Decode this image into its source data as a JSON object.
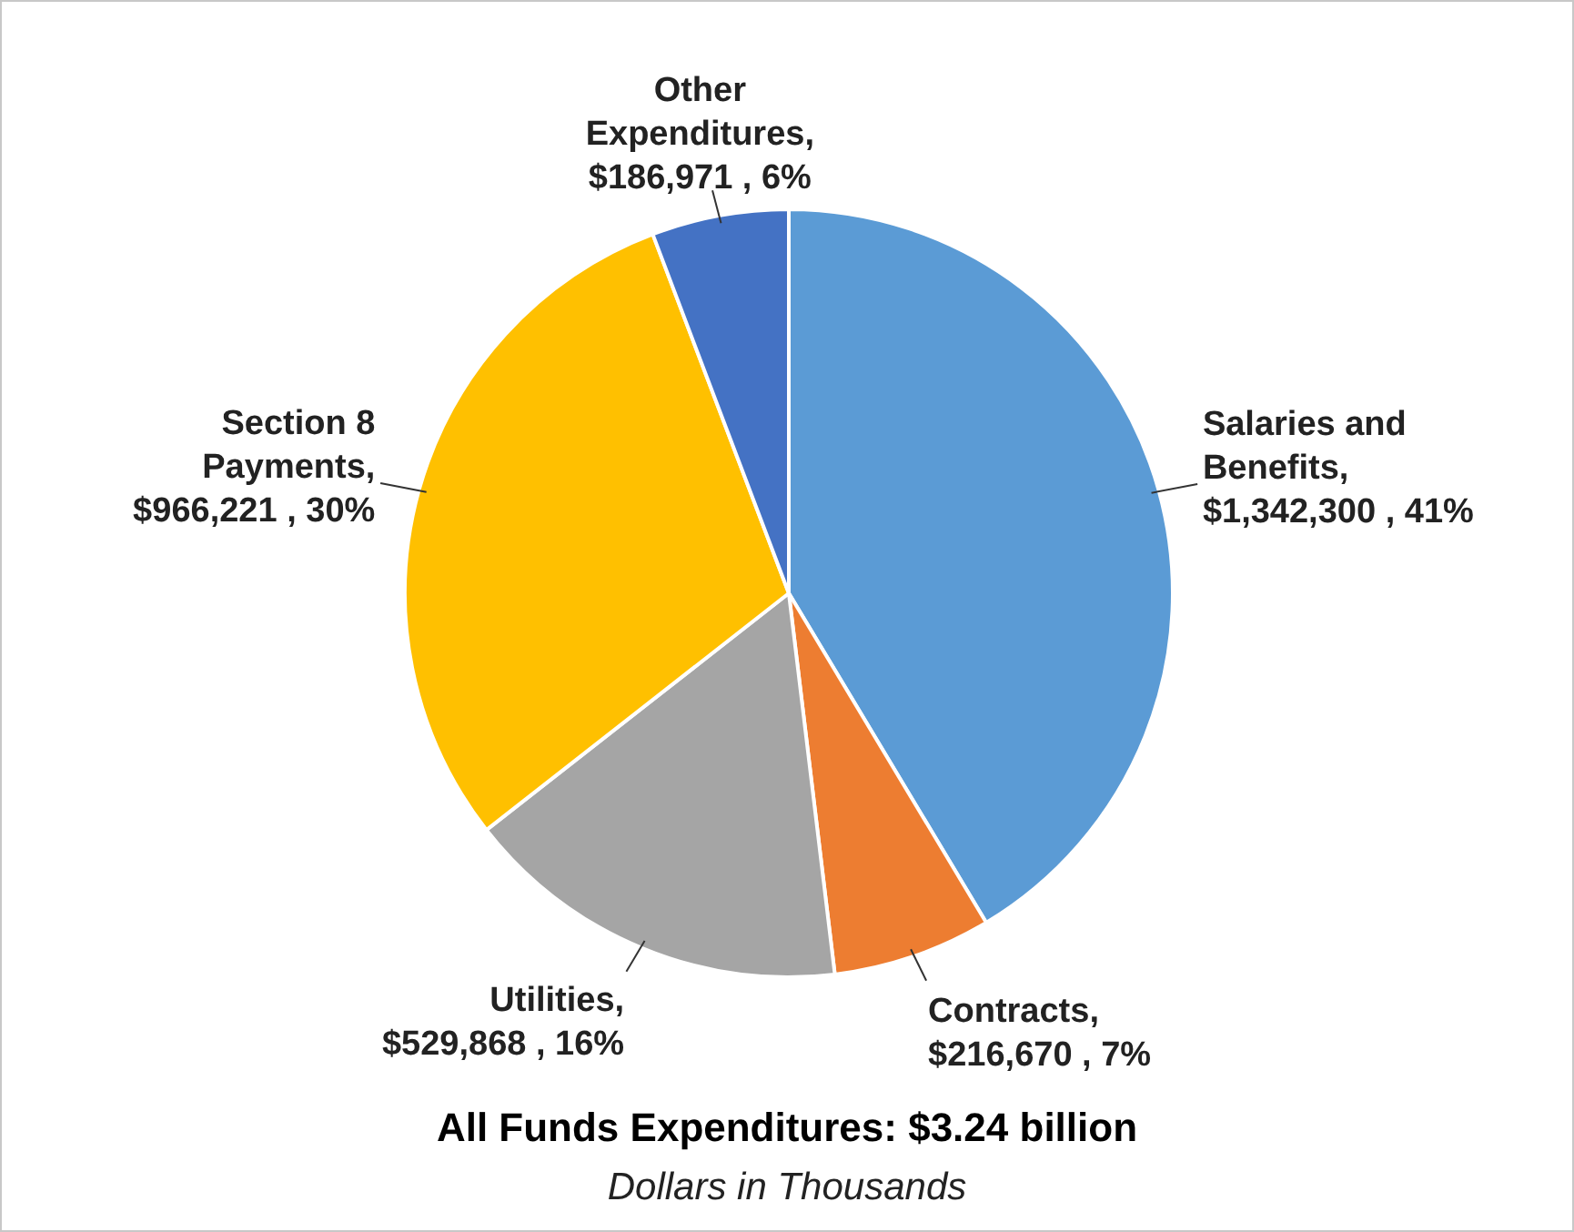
{
  "chart_data": {
    "type": "pie",
    "title": "All Funds Expenditures: $3.24 billion",
    "subtitle": "Dollars in Thousands",
    "categories": [
      "Salaries and Benefits",
      "Contracts",
      "Utilities",
      "Section 8 Payments",
      "Other Expenditures"
    ],
    "values": [
      1342300,
      216670,
      529868,
      966221,
      186971
    ],
    "value_labels": [
      ", $1,342,300 , 41%",
      ", $216,670 , 7%",
      ", $529,868 , 16%",
      ", $966,221 , 30%",
      ", $186,971 , 6%"
    ],
    "colors": [
      "#5b9bd5",
      "#ed7d31",
      "#a5a5a5",
      "#ffc000",
      "#4472c4"
    ],
    "legend": false
  }
}
